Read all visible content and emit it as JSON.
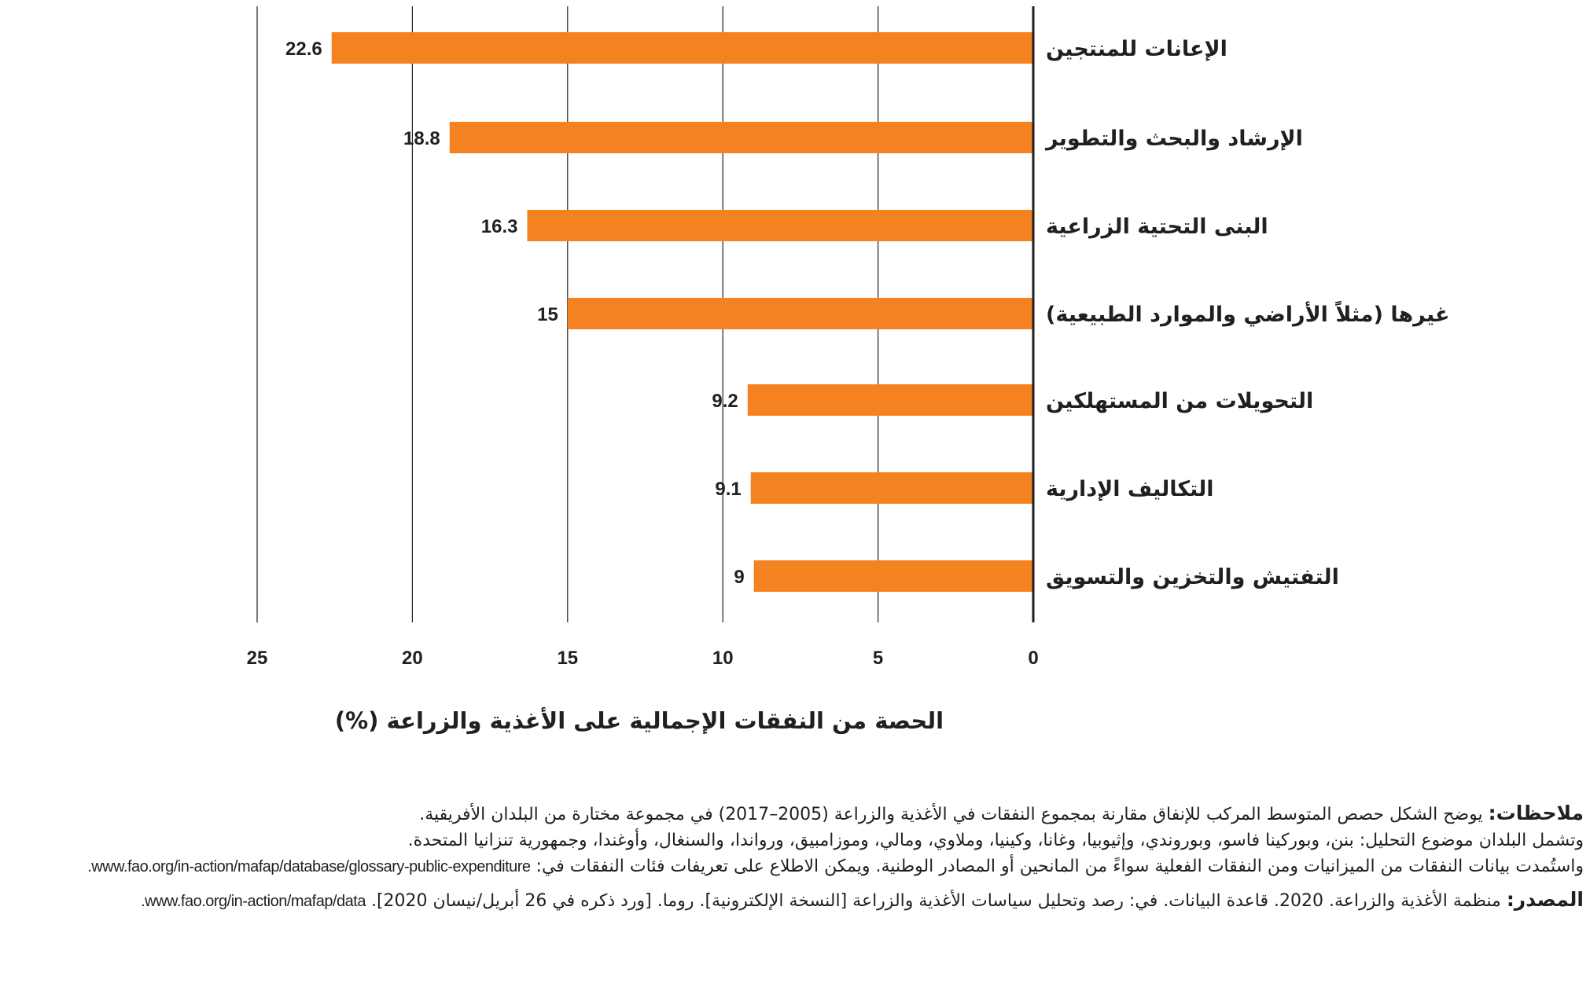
{
  "chart_data": {
    "type": "bar",
    "orientation": "horizontal",
    "categories": [
      "الإعانات للمنتجين",
      "الإرشاد والبحث والتطوير",
      "البنى التحتية الزراعية",
      "غيرها (مثلاً الأراضي والموارد الطبيعية)",
      "التحويلات من المستهلكين",
      "التكاليف الإدارية",
      "التفتيش والتخزين والتسويق"
    ],
    "values": [
      22.6,
      18.8,
      16.3,
      15,
      9.2,
      9.1,
      9
    ],
    "value_labels": [
      "22.6",
      "18.8",
      "16.3",
      "15",
      "9.2",
      "9.1",
      "9"
    ],
    "xlim": [
      0,
      25
    ],
    "x_direction": "right-to-left",
    "xticks": [
      "0",
      "5",
      "10",
      "15",
      "20",
      "25"
    ],
    "xlabel": "الحصة من النفقات الإجمالية على الأغذية والزراعة (%)",
    "ylabel": "",
    "grid": "vertical",
    "bar_color": "#f58220"
  },
  "notes": {
    "label": "ملاحظات:",
    "line1": "يوضح الشكل حصص المتوسط المركب للإنفاق مقارنة بمجموع النفقات في الأغذية والزراعة (2005–2017) في مجموعة مختارة من البلدان الأفريقية.",
    "line2": "وتشمل البلدان موضوع التحليل: بنن، وبوركينا فاسو، وبوروندي، وإثيوبيا، وغانا، وكينيا، وملاوي، ومالي، وموزامبيق، ورواندا، والسنغال، وأوغندا، وجمهورية تنزانيا المتحدة.",
    "line3": "واستُمدت بيانات النفقات من الميزانيات ومن النفقات الفعلية سواءً من المانحين أو المصادر الوطنية. ويمكن الاطلاع على تعريفات فئات النفقات في:",
    "url1": "www.fao.org/in-action/mafap/database/glossary-public-expenditure."
  },
  "source": {
    "label": "المصدر:",
    "text": "منظمة الأغذية والزراعة. 2020. قاعدة البيانات. في: رصد وتحليل سياسات الأغذية والزراعة [النسخة الإلكترونية]. روما. [ورد ذكره في 26 أبريل/نيسان 2020].",
    "url": "www.fao.org/in-action/mafap/data."
  }
}
